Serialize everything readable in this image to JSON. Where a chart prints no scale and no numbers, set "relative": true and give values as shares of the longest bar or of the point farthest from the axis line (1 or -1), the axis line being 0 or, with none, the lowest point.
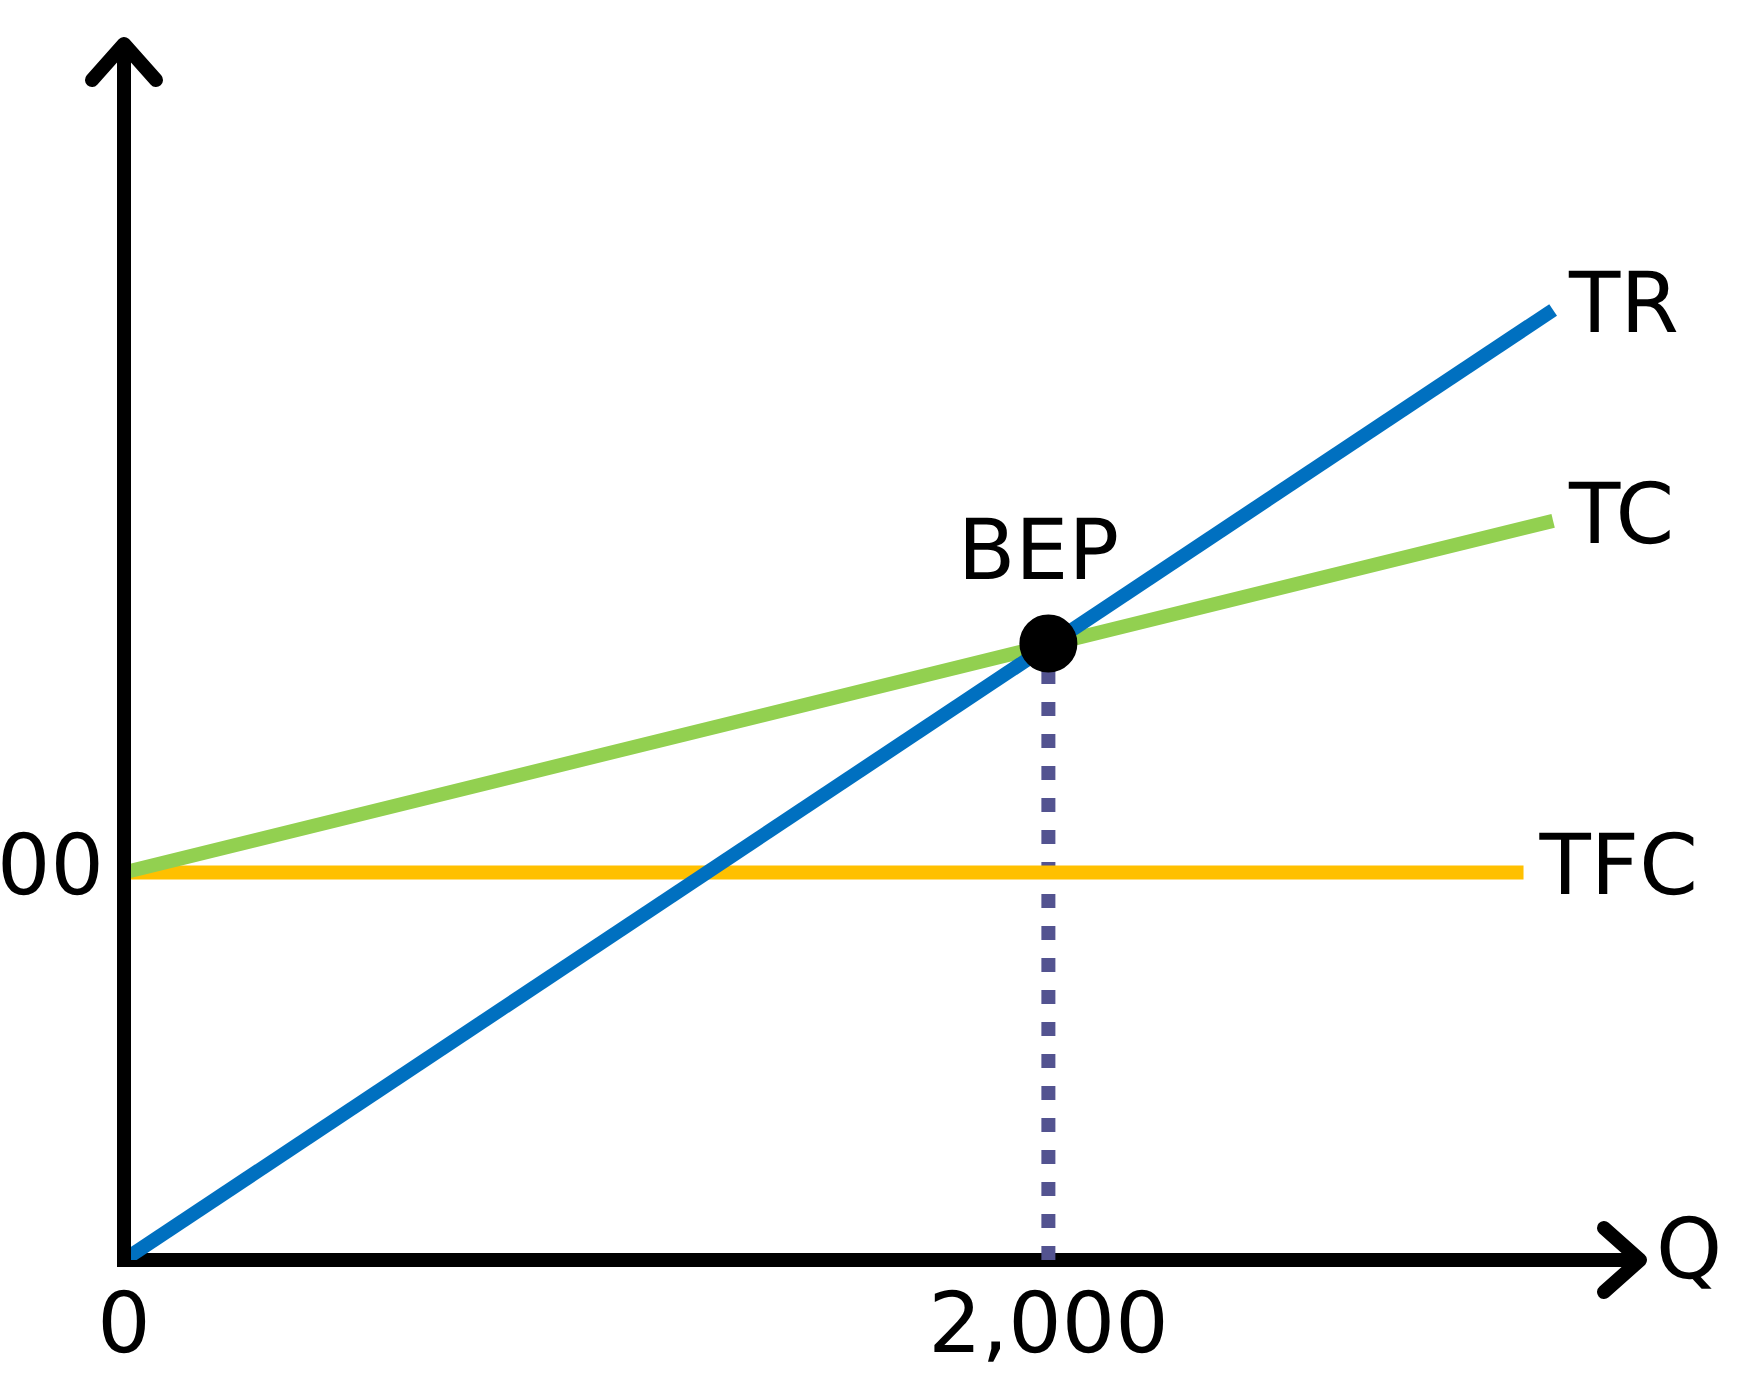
{
  "chart_data": {
    "type": "line",
    "relative": true,
    "xlabel": "Q",
    "xlim": [
      0,
      3280
    ],
    "xticks": [
      {
        "value": 0,
        "label": "0"
      },
      {
        "value": 2000,
        "label": "2,000"
      }
    ],
    "series": [
      {
        "name": "TR",
        "color": "#0070c0",
        "x": [
          0,
          3092
        ],
        "values": [
          0,
          1
        ]
      },
      {
        "name": "TC",
        "color": "#92d050",
        "x": [
          0,
          3092
        ],
        "values": [
          0.408,
          0.778
        ]
      },
      {
        "name": "TFC",
        "color": "#ffc000",
        "x": [
          0,
          3028
        ],
        "values": [
          0.408,
          0.408
        ]
      },
      {
        "color": "#535390",
        "x": [
          2000,
          2000
        ],
        "values": [
          0,
          0.649
        ],
        "line_style": "dotted"
      },
      {
        "type": "scatter",
        "marker": "circle",
        "color": "#000000",
        "x": [
          2000
        ],
        "values": [
          0.649
        ]
      }
    ],
    "annotations": [
      {
        "text": "BEP",
        "x": 2000,
        "y": 0.649
      },
      {
        "text": "00",
        "x": 0,
        "y": 0.408
      }
    ],
    "marker": "none",
    "grid": false,
    "legend": false
  }
}
